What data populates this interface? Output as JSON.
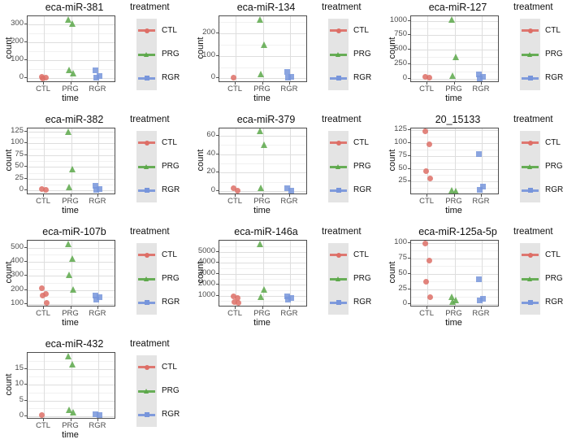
{
  "figure": {
    "background": "#FFFFFF",
    "axes": {
      "xlabel": "time",
      "ylabel": "count",
      "categories": [
        "CTL",
        "PRG",
        "RGR"
      ]
    },
    "legend": {
      "title": "treatment",
      "key_background": "#E4E4E4",
      "entries": [
        {
          "label": "CTL",
          "shape": "circle",
          "color": "#DD6E66"
        },
        {
          "label": "PRG",
          "shape": "triangle",
          "color": "#5CA84A"
        },
        {
          "label": "RGR",
          "shape": "square",
          "color": "#7795DB"
        }
      ]
    },
    "style": {
      "panel_border": "#4D4D4D",
      "grid_major": "#DEDEDE",
      "grid_minor": "#F1F1F1",
      "tick_label_color": "#4D4D4D",
      "title_color": "#111111",
      "point_opacity": 0.85
    }
  },
  "chart_data": [
    {
      "type": "scatter",
      "title": "eca-miR-381",
      "xlabel": "time",
      "ylabel": "count",
      "categories": [
        "CTL",
        "PRG",
        "RGR"
      ],
      "y_ticks": [
        0,
        100,
        200,
        300
      ],
      "ylim": [
        -17,
        347
      ],
      "legend_title": "treatment",
      "legend_position": "right",
      "grid": true,
      "series": [
        {
          "name": "CTL",
          "values": [
            6,
            3,
            1
          ]
        },
        {
          "name": "PRG",
          "values": [
            330,
            308,
            45,
            30
          ]
        },
        {
          "name": "RGR",
          "values": [
            45,
            12,
            4
          ]
        }
      ]
    },
    {
      "type": "scatter",
      "title": "eca-miR-134",
      "xlabel": "time",
      "ylabel": "count",
      "categories": [
        "CTL",
        "PRG",
        "RGR"
      ],
      "y_ticks": [
        0,
        100,
        200
      ],
      "ylim": [
        -13,
        275
      ],
      "legend_title": "treatment",
      "legend_position": "right",
      "grid": true,
      "series": [
        {
          "name": "CTL",
          "values": [
            2
          ]
        },
        {
          "name": "PRG",
          "values": [
            262,
            150,
            18
          ]
        },
        {
          "name": "RGR",
          "values": [
            30,
            8,
            2
          ]
        }
      ]
    },
    {
      "type": "scatter",
      "title": "eca-miR-127",
      "xlabel": "time",
      "ylabel": "count",
      "categories": [
        "CTL",
        "PRG",
        "RGR"
      ],
      "y_ticks": [
        0,
        250,
        500,
        750,
        1000
      ],
      "ylim": [
        -46,
        1081
      ],
      "legend_title": "treatment",
      "legend_position": "right",
      "grid": true,
      "series": [
        {
          "name": "CTL",
          "values": [
            35,
            15
          ]
        },
        {
          "name": "PRG",
          "values": [
            1030,
            380,
            55
          ]
        },
        {
          "name": "RGR",
          "values": [
            70,
            25,
            8
          ]
        }
      ]
    },
    {
      "type": "scatter",
      "title": "eca-miR-382",
      "xlabel": "time",
      "ylabel": "count",
      "categories": [
        "CTL",
        "PRG",
        "RGR"
      ],
      "y_ticks": [
        0,
        25,
        50,
        75,
        100,
        125
      ],
      "ylim": [
        -6,
        131
      ],
      "legend_title": "treatment",
      "legend_position": "right",
      "grid": true,
      "series": [
        {
          "name": "CTL",
          "values": [
            3,
            1
          ]
        },
        {
          "name": "PRG",
          "values": [
            125,
            45,
            7
          ]
        },
        {
          "name": "RGR",
          "values": [
            10,
            4,
            1
          ]
        }
      ]
    },
    {
      "type": "scatter",
      "title": "eca-miR-379",
      "xlabel": "time",
      "ylabel": "count",
      "categories": [
        "CTL",
        "PRG",
        "RGR"
      ],
      "y_ticks": [
        0,
        20,
        40,
        60
      ],
      "ylim": [
        -2.5,
        68
      ],
      "legend_title": "treatment",
      "legend_position": "right",
      "grid": true,
      "series": [
        {
          "name": "CTL",
          "values": [
            3,
            1
          ]
        },
        {
          "name": "PRG",
          "values": [
            65,
            50,
            4
          ]
        },
        {
          "name": "RGR",
          "values": [
            3,
            1
          ]
        }
      ]
    },
    {
      "type": "scatter",
      "title": "20_15133",
      "xlabel": "time",
      "ylabel": "count",
      "categories": [
        "CTL",
        "PRG",
        "RGR"
      ],
      "y_ticks": [
        25,
        50,
        75,
        100,
        125
      ],
      "ylim": [
        2,
        128
      ],
      "legend_title": "treatment",
      "legend_position": "right",
      "grid": true,
      "series": [
        {
          "name": "CTL",
          "values": [
            122,
            98,
            45,
            31
          ]
        },
        {
          "name": "PRG",
          "values": [
            9,
            6
          ]
        },
        {
          "name": "RGR",
          "values": [
            79,
            15,
            9
          ]
        }
      ]
    },
    {
      "type": "scatter",
      "title": "eca-miR-107b",
      "xlabel": "time",
      "ylabel": "count",
      "categories": [
        "CTL",
        "PRG",
        "RGR"
      ],
      "y_ticks": [
        100,
        200,
        300,
        400,
        500
      ],
      "ylim": [
        87,
        551
      ],
      "legend_title": "treatment",
      "legend_position": "right",
      "grid": true,
      "series": [
        {
          "name": "CTL",
          "values": [
            212,
            170,
            158,
            108
          ]
        },
        {
          "name": "PRG",
          "values": [
            530,
            425,
            305,
            203
          ]
        },
        {
          "name": "RGR",
          "values": [
            158,
            148,
            133
          ]
        }
      ]
    },
    {
      "type": "scatter",
      "title": "eca-miR-146a",
      "xlabel": "time",
      "ylabel": "count",
      "categories": [
        "CTL",
        "PRG",
        "RGR"
      ],
      "y_ticks": [
        1000,
        2000,
        3000,
        4000,
        5000
      ],
      "ylim": [
        80,
        6020
      ],
      "legend_title": "treatment",
      "legend_position": "right",
      "grid": true,
      "series": [
        {
          "name": "CTL",
          "values": [
            900,
            750,
            450,
            350
          ]
        },
        {
          "name": "PRG",
          "values": [
            5750,
            1600,
            880
          ]
        },
        {
          "name": "RGR",
          "values": [
            900,
            780,
            620
          ]
        }
      ]
    },
    {
      "type": "scatter",
      "title": "eca-miR-125a-5p",
      "xlabel": "time",
      "ylabel": "count",
      "categories": [
        "CTL",
        "PRG",
        "RGR"
      ],
      "y_ticks": [
        0,
        25,
        50,
        75,
        100
      ],
      "ylim": [
        -2,
        104
      ],
      "legend_title": "treatment",
      "legend_position": "right",
      "grid": true,
      "series": [
        {
          "name": "CTL",
          "values": [
            99,
            71,
            37,
            12
          ]
        },
        {
          "name": "PRG",
          "values": [
            12,
            7,
            4
          ]
        },
        {
          "name": "RGR",
          "values": [
            41,
            9,
            6
          ]
        }
      ]
    },
    {
      "type": "scatter",
      "title": "eca-miR-432",
      "xlabel": "time",
      "ylabel": "count",
      "categories": [
        "CTL",
        "PRG",
        "RGR"
      ],
      "y_ticks": [
        0,
        5,
        10,
        15
      ],
      "ylim": [
        -0.5,
        20
      ],
      "legend_title": "treatment",
      "legend_position": "right",
      "grid": true,
      "series": [
        {
          "name": "CTL",
          "values": [
            0.5
          ]
        },
        {
          "name": "PRG",
          "values": [
            19,
            16.5,
            2,
            1.3
          ]
        },
        {
          "name": "RGR",
          "values": [
            0.7,
            0.4
          ]
        }
      ]
    }
  ]
}
